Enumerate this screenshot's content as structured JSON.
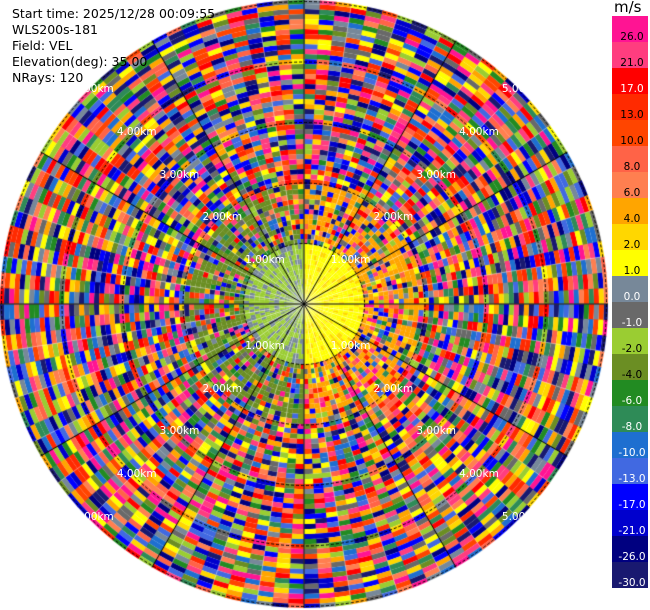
{
  "info": {
    "start_time": "Start time: 2025/12/28 00:09:55",
    "station": "WLS200s-181",
    "field": "Field: VEL",
    "elevation": "Elevation(deg): 35.00",
    "nrays": "NRays: 120"
  },
  "colorbar": {
    "unit": "m/s",
    "labels": [
      "26.0",
      "21.0",
      "17.0",
      "13.0",
      "10.0",
      "8.0",
      "6.0",
      "4.0",
      "2.0",
      "1.0",
      "0.0",
      "-1.0",
      "-2.0",
      "-4.0",
      "-6.0",
      "-8.0",
      "-10.0",
      "-13.0",
      "-17.0",
      "-21.0",
      "-26.0",
      "-30.0"
    ],
    "colors": [
      "#ff1493",
      "#ff3d7f",
      "#ff0000",
      "#ff2a00",
      "#ff4500",
      "#ff6347",
      "#ff7f50",
      "#ffa500",
      "#ffd700",
      "#ffff00",
      "#778899",
      "#696969",
      "#9acd32",
      "#6b8e23",
      "#228b22",
      "#2e8b57",
      "#1e6fd0",
      "#4169e1",
      "#0000ff",
      "#0000cd",
      "#000080",
      "#191970"
    ]
  },
  "range_labels": [
    "1.00km",
    "2.00km",
    "3.00km",
    "4.00km",
    "5.00km"
  ],
  "ppi": {
    "rays": 120,
    "rings": [
      1,
      2,
      3,
      4,
      5
    ]
  }
}
